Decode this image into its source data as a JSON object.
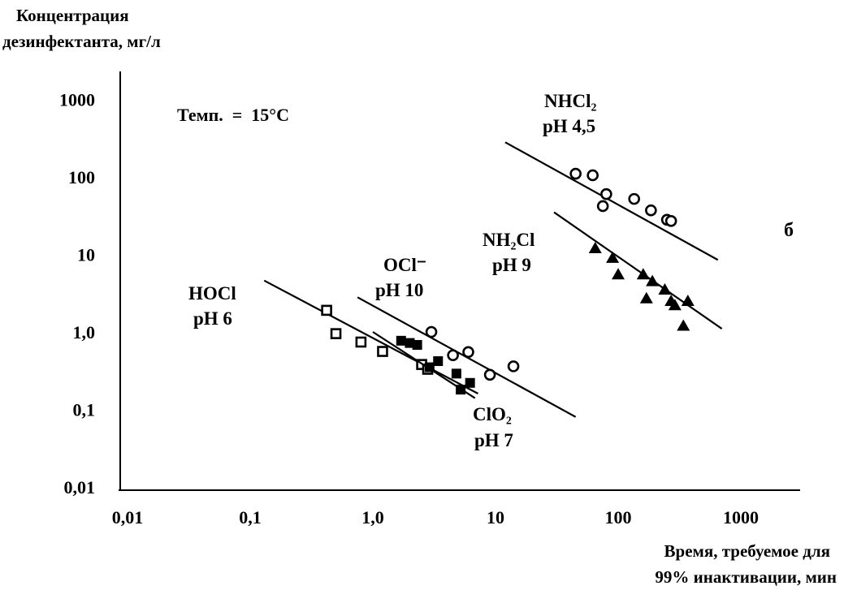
{
  "chart_data": {
    "type": "scatter",
    "scale": "log-log",
    "ylabel_line1": "Концентрация",
    "ylabel_line2": "дезинфектанта, мг/л",
    "xlabel_line1": "Время, требуемое для",
    "xlabel_line2": "99% инактивации, мин",
    "temp_label": "Темп.  =  15°С",
    "panel_label": "б",
    "xlim": [
      0.01,
      3000
    ],
    "ylim": [
      0.01,
      2500
    ],
    "xticks": [
      {
        "v": 0.01,
        "label": "0,01"
      },
      {
        "v": 0.1,
        "label": "0,1"
      },
      {
        "v": 1,
        "label": "1,0"
      },
      {
        "v": 10,
        "label": "10"
      },
      {
        "v": 100,
        "label": "100"
      },
      {
        "v": 1000,
        "label": "1000"
      }
    ],
    "yticks": [
      {
        "v": 0.01,
        "label": "0,01"
      },
      {
        "v": 0.1,
        "label": "0,1"
      },
      {
        "v": 1,
        "label": "1,0"
      },
      {
        "v": 10,
        "label": "10"
      },
      {
        "v": 100,
        "label": "100"
      },
      {
        "v": 1000,
        "label": "1000"
      }
    ],
    "series": [
      {
        "name_line1": "NHCl₂",
        "name_line2": "pH 4,5",
        "marker": "circle",
        "fit": [
          [
            12,
            280
          ],
          [
            650,
            8.5
          ]
        ],
        "points": [
          [
            45,
            110
          ],
          [
            62,
            105
          ],
          [
            80,
            60
          ],
          [
            75,
            42
          ],
          [
            135,
            52
          ],
          [
            185,
            37
          ],
          [
            250,
            28
          ],
          [
            270,
            27
          ]
        ]
      },
      {
        "name_line1": "NH₂Cl",
        "name_line2": "pH 9",
        "marker": "triangle",
        "fit": [
          [
            30,
            35
          ],
          [
            700,
            1.1
          ]
        ],
        "points": [
          [
            65,
            12
          ],
          [
            90,
            9
          ],
          [
            100,
            5.5
          ],
          [
            160,
            5.5
          ],
          [
            190,
            4.5
          ],
          [
            240,
            3.5
          ],
          [
            170,
            2.7
          ],
          [
            270,
            2.5
          ],
          [
            290,
            2.2
          ],
          [
            370,
            2.5
          ],
          [
            340,
            1.2
          ]
        ]
      },
      {
        "name_line1": "OCl⁻",
        "name_line2": "pH 10",
        "marker": "circle",
        "fit": [
          [
            0.75,
            2.8
          ],
          [
            45,
            0.08
          ]
        ],
        "points": [
          [
            3,
            1.0
          ],
          [
            4.5,
            0.5
          ],
          [
            6,
            0.55
          ],
          [
            9,
            0.28
          ],
          [
            14,
            0.36
          ]
        ]
      },
      {
        "name_line1": "HOCl",
        "name_line2": "pH 6",
        "marker": "square-open",
        "fit": [
          [
            0.13,
            4.6
          ],
          [
            7.2,
            0.16
          ]
        ],
        "points": [
          [
            0.42,
            1.9
          ],
          [
            0.5,
            0.95
          ],
          [
            0.8,
            0.74
          ],
          [
            1.2,
            0.56
          ],
          [
            2.5,
            0.38
          ],
          [
            2.8,
            0.33
          ]
        ]
      },
      {
        "name_line1": "ClO₂",
        "name_line2": "pH 7",
        "marker": "square-filled",
        "fit": [
          [
            1.0,
            1.0
          ],
          [
            6.8,
            0.14
          ]
        ],
        "points": [
          [
            1.7,
            0.77
          ],
          [
            2.0,
            0.72
          ],
          [
            2.3,
            0.68
          ],
          [
            3.4,
            0.42
          ],
          [
            4.8,
            0.29
          ],
          [
            5.2,
            0.18
          ],
          [
            6.2,
            0.22
          ],
          [
            2.9,
            0.35
          ]
        ]
      }
    ]
  }
}
